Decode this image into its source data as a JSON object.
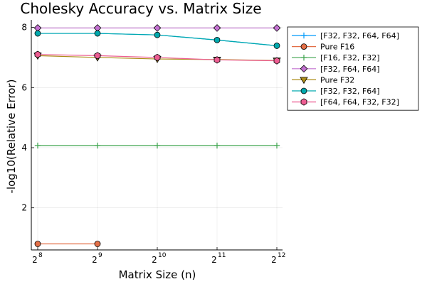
{
  "chart_data": {
    "type": "line",
    "title": "Cholesky Accuracy vs. Matrix Size",
    "xlabel": "Matrix Size (n)",
    "ylabel": "-log10(Relative Error)",
    "x_scale": "log2",
    "x": [
      256,
      512,
      1024,
      2048,
      4096
    ],
    "x_tick_labels": [
      {
        "base": "2",
        "exp": "8"
      },
      {
        "base": "2",
        "exp": "9"
      },
      {
        "base": "2",
        "exp": "10"
      },
      {
        "base": "2",
        "exp": "11"
      },
      {
        "base": "2",
        "exp": "12"
      }
    ],
    "y_ticks": [
      2,
      4,
      6,
      8
    ],
    "ylim": [
      0.6,
      8.25
    ],
    "grid": true,
    "legend_position": "outside-top-right",
    "series": [
      {
        "name": "[F32, F32, F64, F64]",
        "color": "#009AFA",
        "marker": "cross",
        "values": [
          7.8,
          7.8,
          7.75,
          7.58,
          7.39
        ]
      },
      {
        "name": "Pure F16",
        "color": "#E36F47",
        "marker": "circle",
        "values": [
          0.8,
          0.8,
          null,
          null,
          null
        ]
      },
      {
        "name": "[F16, F32, F32]",
        "color": "#3EA44E",
        "marker": "cross",
        "values": [
          4.07,
          4.07,
          4.07,
          4.07,
          4.07
        ]
      },
      {
        "name": "[F32, F64, F64]",
        "color": "#C371D1",
        "marker": "diamond",
        "values": [
          7.98,
          7.98,
          7.98,
          7.98,
          7.98
        ]
      },
      {
        "name": "Pure F32",
        "color": "#AC8E18",
        "marker": "triangle-down",
        "values": [
          7.06,
          7.0,
          6.95,
          6.93,
          6.9
        ]
      },
      {
        "name": "[F32, F32, F64]",
        "color": "#00A9AD",
        "marker": "circle",
        "values": [
          7.8,
          7.8,
          7.75,
          7.58,
          7.39
        ]
      },
      {
        "name": "[F64, F64, F32, F32]",
        "color": "#ED5D92",
        "marker": "hexagon",
        "values": [
          7.1,
          7.06,
          7.0,
          6.92,
          6.89
        ]
      }
    ]
  }
}
